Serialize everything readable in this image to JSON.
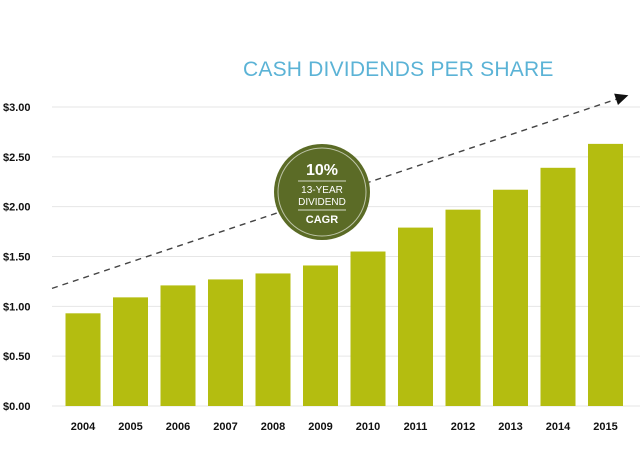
{
  "chart_data": {
    "type": "bar",
    "title": "CASH DIVIDENDS PER SHARE",
    "xlabel": "",
    "ylabel": "",
    "categories": [
      "2004",
      "2005",
      "2006",
      "2007",
      "2008",
      "2009",
      "2010",
      "2011",
      "2012",
      "2013",
      "2014",
      "2015"
    ],
    "values": [
      0.93,
      1.09,
      1.21,
      1.27,
      1.33,
      1.41,
      1.55,
      1.79,
      1.97,
      2.17,
      2.39,
      2.63
    ],
    "ylim": [
      0,
      3.0
    ],
    "yticks": [
      "$0.00",
      "$0.50",
      "$1.00",
      "$1.50",
      "$2.00",
      "$2.50",
      "$3.00"
    ],
    "ytick_values": [
      0,
      0.5,
      1.0,
      1.5,
      2.0,
      2.5,
      3.0
    ],
    "grid": true,
    "trend_line": {
      "style": "dashed",
      "from_value": 1.18,
      "to_value": 3.08
    },
    "annotation": {
      "value": "10%",
      "line1": "13-YEAR",
      "line2": "DIVIDEND",
      "line3": "CAGR"
    }
  },
  "colors": {
    "bar": "#b4bd10",
    "title": "#5bb3d6",
    "badge": "#5b6b26",
    "grid": "#e6e6e6",
    "trend": "#444444"
  }
}
